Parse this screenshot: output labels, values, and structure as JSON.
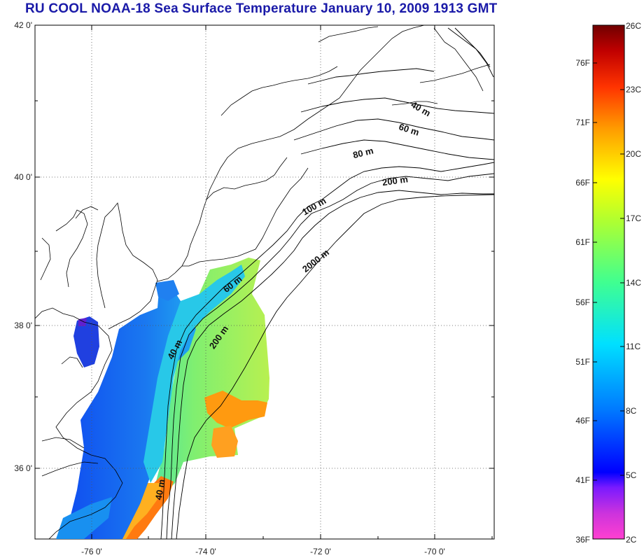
{
  "title": "RU COOL  NOAA-18 Sea Surface Temperature January 10, 2009 1913 GMT",
  "map": {
    "lat_labels": [
      "42 0'",
      "40 0'",
      "38 0'",
      "36 0'"
    ],
    "lon_labels": [
      "-76 0'",
      "-74 0'",
      "-72 0'",
      "-70 0'"
    ],
    "contour_labels": [
      "40 m",
      "60 m",
      "80 m",
      "200 m",
      "100 m",
      "2000 m",
      "60 m",
      "40 m",
      "200 m",
      "40 m"
    ]
  },
  "colorbar": {
    "fahrenheit_labels": [
      "76F",
      "71F",
      "66F",
      "61F",
      "56F",
      "51F",
      "46F",
      "41F",
      "36F"
    ],
    "celsius_labels": [
      "26C",
      "23C",
      "20C",
      "17C",
      "14C",
      "11C",
      "8C",
      "5C",
      "2C"
    ],
    "colors": [
      "#ff33cc",
      "#6a00ff",
      "#0000ff",
      "#00a0ff",
      "#00ffff",
      "#40ff80",
      "#a0ff40",
      "#ffff00",
      "#ff9900",
      "#ff3300",
      "#b00000",
      "#700000"
    ]
  }
}
